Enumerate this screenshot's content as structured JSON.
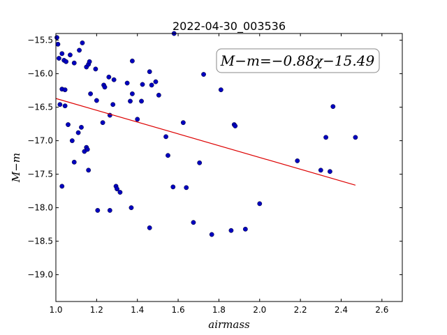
{
  "chart_data": {
    "type": "scatter",
    "title": "2022-04-30_003536",
    "xlabel": "airmass",
    "ylabel": "M−m",
    "annotation": "M−m=−0.88χ−15.49",
    "xlim": [
      1.0,
      2.7
    ],
    "ylim": [
      -19.4,
      -15.4
    ],
    "y_inverted": true,
    "grid": false,
    "legend": "none",
    "x_ticks": [
      1.0,
      1.2,
      1.4,
      1.6,
      1.8,
      2.0,
      2.2,
      2.4,
      2.6
    ],
    "x_tick_labels": [
      "1.0",
      "1.2",
      "1.4",
      "1.6",
      "1.8",
      "2.0",
      "2.2",
      "2.4",
      "2.6"
    ],
    "y_ticks": [
      -15.5,
      -16.0,
      -16.5,
      -17.0,
      -17.5,
      -18.0,
      -18.5,
      -19.0
    ],
    "y_tick_labels": [
      "−15.5",
      "−16.0",
      "−16.5",
      "−17.0",
      "−17.5",
      "−18.0",
      "−18.5",
      "−19.0"
    ],
    "point_color": "#0000bf",
    "fit_color": "#dd0000",
    "fit": {
      "slope": -0.88,
      "intercept": -15.49,
      "x_range": [
        1.0,
        2.47
      ]
    },
    "points": [
      {
        "x": 1.005,
        "y": -15.46
      },
      {
        "x": 1.01,
        "y": -15.56
      },
      {
        "x": 1.015,
        "y": -15.77
      },
      {
        "x": 1.03,
        "y": -15.7
      },
      {
        "x": 1.04,
        "y": -15.8
      },
      {
        "x": 1.05,
        "y": -15.82
      },
      {
        "x": 1.07,
        "y": -15.72
      },
      {
        "x": 1.09,
        "y": -15.84
      },
      {
        "x": 1.115,
        "y": -15.65
      },
      {
        "x": 1.13,
        "y": -15.54
      },
      {
        "x": 1.15,
        "y": -15.9
      },
      {
        "x": 1.16,
        "y": -15.86
      },
      {
        "x": 1.165,
        "y": -15.82
      },
      {
        "x": 1.195,
        "y": -15.93
      },
      {
        "x": 1.03,
        "y": -16.23
      },
      {
        "x": 1.045,
        "y": -16.24
      },
      {
        "x": 1.02,
        "y": -16.46
      },
      {
        "x": 1.045,
        "y": -16.48
      },
      {
        "x": 1.06,
        "y": -16.76
      },
      {
        "x": 1.08,
        "y": -17.0
      },
      {
        "x": 1.09,
        "y": -17.32
      },
      {
        "x": 1.11,
        "y": -16.88
      },
      {
        "x": 1.125,
        "y": -16.8
      },
      {
        "x": 1.14,
        "y": -17.16
      },
      {
        "x": 1.15,
        "y": -17.1
      },
      {
        "x": 1.155,
        "y": -17.13
      },
      {
        "x": 1.16,
        "y": -17.44
      },
      {
        "x": 1.17,
        "y": -16.3
      },
      {
        "x": 1.2,
        "y": -16.4
      },
      {
        "x": 1.03,
        "y": -17.68
      },
      {
        "x": 1.205,
        "y": -18.04
      },
      {
        "x": 1.23,
        "y": -16.73
      },
      {
        "x": 1.235,
        "y": -16.17
      },
      {
        "x": 1.24,
        "y": -16.2
      },
      {
        "x": 1.26,
        "y": -16.05
      },
      {
        "x": 1.265,
        "y": -16.62
      },
      {
        "x": 1.28,
        "y": -16.46
      },
      {
        "x": 1.285,
        "y": -16.09
      },
      {
        "x": 1.295,
        "y": -17.68
      },
      {
        "x": 1.3,
        "y": -17.72
      },
      {
        "x": 1.315,
        "y": -17.77
      },
      {
        "x": 1.265,
        "y": -18.04
      },
      {
        "x": 1.35,
        "y": -16.14
      },
      {
        "x": 1.365,
        "y": -16.41
      },
      {
        "x": 1.375,
        "y": -15.81
      },
      {
        "x": 1.375,
        "y": -16.3
      },
      {
        "x": 1.37,
        "y": -18.0
      },
      {
        "x": 1.4,
        "y": -16.68
      },
      {
        "x": 1.42,
        "y": -16.41
      },
      {
        "x": 1.425,
        "y": -16.16
      },
      {
        "x": 1.46,
        "y": -15.97
      },
      {
        "x": 1.47,
        "y": -16.17
      },
      {
        "x": 1.49,
        "y": -16.12
      },
      {
        "x": 1.505,
        "y": -16.32
      },
      {
        "x": 1.54,
        "y": -16.94
      },
      {
        "x": 1.55,
        "y": -17.22
      },
      {
        "x": 1.46,
        "y": -18.3
      },
      {
        "x": 1.58,
        "y": -15.4
      },
      {
        "x": 1.575,
        "y": -17.69
      },
      {
        "x": 1.625,
        "y": -16.73
      },
      {
        "x": 1.64,
        "y": -17.7
      },
      {
        "x": 1.675,
        "y": -18.22
      },
      {
        "x": 1.705,
        "y": -17.33
      },
      {
        "x": 1.725,
        "y": -16.01
      },
      {
        "x": 1.765,
        "y": -18.4
      },
      {
        "x": 1.81,
        "y": -16.24
      },
      {
        "x": 1.86,
        "y": -18.34
      },
      {
        "x": 1.875,
        "y": -16.76
      },
      {
        "x": 1.88,
        "y": -16.78
      },
      {
        "x": 1.93,
        "y": -18.32
      },
      {
        "x": 2.0,
        "y": -17.94
      },
      {
        "x": 2.185,
        "y": -17.3
      },
      {
        "x": 2.3,
        "y": -17.44
      },
      {
        "x": 2.325,
        "y": -16.95
      },
      {
        "x": 2.345,
        "y": -17.46
      },
      {
        "x": 2.36,
        "y": -16.49
      },
      {
        "x": 2.47,
        "y": -16.95
      }
    ]
  }
}
